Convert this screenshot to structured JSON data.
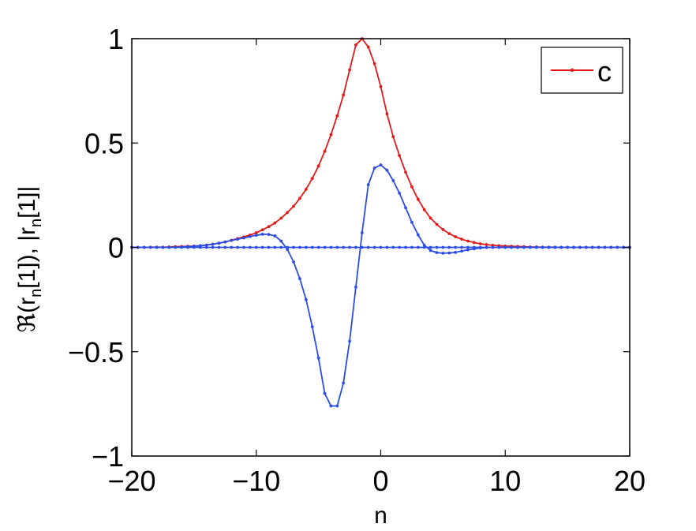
{
  "chart_data": {
    "type": "line",
    "title": "",
    "xlabel": "n",
    "ylabel": "ℜ(r_n[1]), |r_n[1]|",
    "ylabel_parts": {
      "prefix": "ℜ(r",
      "sub1": "n",
      "mid": "[1]), |r",
      "sub2": "n",
      "suffix": "[1]|"
    },
    "xlim": [
      -20,
      20
    ],
    "ylim": [
      -1,
      1
    ],
    "xticks": [
      -20,
      -10,
      0,
      10,
      20
    ],
    "xtick_labels": [
      "−20",
      "−10",
      "0",
      "10",
      "20"
    ],
    "yticks": [
      -1,
      -0.5,
      0,
      0.5,
      1
    ],
    "ytick_labels": [
      "−1",
      "−0.5",
      "0",
      "0.5",
      "1"
    ],
    "grid": false,
    "legend": {
      "position": "top-right",
      "entries": [
        {
          "label": "c",
          "color": "#e31a1a"
        }
      ]
    },
    "series": [
      {
        "name": "c",
        "color": "#e31a1a",
        "marker": "dot",
        "x": [
          -20,
          -19.5,
          -19,
          -18.5,
          -18,
          -17.5,
          -17,
          -16.5,
          -16,
          -15.5,
          -15,
          -14.5,
          -14,
          -13.5,
          -13,
          -12.5,
          -12,
          -11.5,
          -11,
          -10.5,
          -10,
          -9.5,
          -9,
          -8.5,
          -8,
          -7.5,
          -7,
          -6.5,
          -6,
          -5.5,
          -5,
          -4.5,
          -4,
          -3.5,
          -3,
          -2.5,
          -2,
          -1.5,
          -1,
          -0.5,
          0,
          0.5,
          1,
          1.5,
          2,
          2.5,
          3,
          3.5,
          4,
          4.5,
          5,
          5.5,
          6,
          6.5,
          7,
          7.5,
          8,
          8.5,
          9,
          9.5,
          10,
          10.5,
          11,
          11.5,
          12,
          12.5,
          13,
          13.5,
          14,
          14.5,
          15,
          15.5,
          16,
          16.5,
          17,
          17.5,
          18,
          18.5,
          19,
          19.5,
          20
        ],
        "y": [
          0,
          0,
          0,
          0.001,
          0.001,
          0.001,
          0.002,
          0.003,
          0.004,
          0.005,
          0.006,
          0.008,
          0.011,
          0.015,
          0.02,
          0.026,
          0.034,
          0.042,
          0.05,
          0.059,
          0.07,
          0.084,
          0.099,
          0.117,
          0.14,
          0.167,
          0.197,
          0.235,
          0.278,
          0.33,
          0.39,
          0.46,
          0.54,
          0.63,
          0.73,
          0.85,
          0.97,
          1.0,
          0.96,
          0.88,
          0.77,
          0.64,
          0.53,
          0.44,
          0.36,
          0.29,
          0.23,
          0.18,
          0.14,
          0.11,
          0.085,
          0.066,
          0.051,
          0.039,
          0.03,
          0.023,
          0.017,
          0.013,
          0.01,
          0.008,
          0.006,
          0.005,
          0.004,
          0.003,
          0.002,
          0.002,
          0.001,
          0.001,
          0.001,
          0,
          0,
          0,
          0,
          0,
          0,
          0,
          0,
          0,
          0,
          0,
          0
        ]
      },
      {
        "name": "",
        "color": "#2b4de6",
        "marker": "dot",
        "x": [
          -20,
          -19.5,
          -19,
          -18.5,
          -18,
          -17.5,
          -17,
          -16.5,
          -16,
          -15.5,
          -15,
          -14.5,
          -14,
          -13.5,
          -13,
          -12.5,
          -12,
          -11.5,
          -11,
          -10.5,
          -10,
          -9.5,
          -9,
          -8.5,
          -8,
          -7.5,
          -7,
          -6.5,
          -6,
          -5.5,
          -5,
          -4.5,
          -4,
          -3.5,
          -3,
          -2.5,
          -2,
          -1.5,
          -1,
          -0.5,
          0,
          0.5,
          1,
          1.5,
          2,
          2.5,
          3,
          3.5,
          4,
          4.5,
          5,
          5.5,
          6,
          6.5,
          7,
          7.5,
          8,
          8.5,
          9,
          9.5,
          10,
          10.5,
          11,
          11.5,
          12,
          12.5,
          13,
          13.5,
          14,
          14.5,
          15,
          15.5,
          16,
          16.5,
          17,
          17.5,
          18,
          18.5,
          19,
          19.5,
          20
        ],
        "y": [
          0,
          0,
          0,
          0,
          0,
          0,
          0,
          0,
          0.002,
          0.003,
          0.005,
          0.008,
          0.011,
          0.015,
          0.02,
          0.026,
          0.033,
          0.039,
          0.045,
          0.052,
          0.058,
          0.063,
          0.062,
          0.055,
          0.03,
          -0.01,
          -0.07,
          -0.15,
          -0.25,
          -0.38,
          -0.53,
          -0.7,
          -0.76,
          -0.76,
          -0.65,
          -0.45,
          -0.19,
          0.07,
          0.3,
          0.38,
          0.395,
          0.37,
          0.32,
          0.26,
          0.19,
          0.12,
          0.06,
          0.01,
          -0.015,
          -0.025,
          -0.028,
          -0.027,
          -0.024,
          -0.018,
          -0.012,
          -0.007,
          -0.003,
          -0.001,
          0,
          0,
          0,
          0,
          0,
          0,
          0,
          0,
          0,
          0,
          0,
          0,
          0,
          0,
          0,
          0,
          0,
          0,
          0,
          0,
          0,
          0,
          0
        ]
      },
      {
        "name": "",
        "color": "#2b4de6",
        "marker": "dot",
        "x": [
          -20,
          -19.5,
          -19,
          -18.5,
          -18,
          -17.5,
          -17,
          -16.5,
          -16,
          -15.5,
          -15,
          -14.5,
          -14,
          -13.5,
          -13,
          -12.5,
          -12,
          -11.5,
          -11,
          -10.5,
          -10,
          -9.5,
          -9,
          -8.5,
          -8,
          -7.5,
          -7,
          -6.5,
          -6,
          -5.5,
          -5,
          -4.5,
          -4,
          -3.5,
          -3,
          -2.5,
          -2,
          -1.5,
          -1,
          -0.5,
          0,
          0.5,
          1,
          1.5,
          2,
          2.5,
          3,
          3.5,
          4,
          4.5,
          5,
          5.5,
          6,
          6.5,
          7,
          7.5,
          8,
          8.5,
          9,
          9.5,
          10,
          10.5,
          11,
          11.5,
          12,
          12.5,
          13,
          13.5,
          14,
          14.5,
          15,
          15.5,
          16,
          16.5,
          17,
          17.5,
          18,
          18.5,
          19,
          19.5,
          20
        ],
        "y": [
          0,
          0,
          0,
          0,
          0,
          0,
          0,
          0,
          0,
          0,
          0,
          0,
          0,
          0,
          0,
          0,
          0,
          0,
          0,
          0,
          0,
          0,
          0,
          0,
          0,
          0,
          0,
          0,
          0,
          0,
          0,
          0,
          0,
          0,
          0,
          0,
          0,
          0,
          0,
          0,
          0,
          0,
          0,
          0,
          0,
          0,
          0,
          0,
          0,
          0,
          0,
          0,
          0,
          0,
          0,
          0,
          0,
          0,
          0,
          0,
          0,
          0,
          0,
          0,
          0,
          0,
          0,
          0,
          0,
          0,
          0,
          0,
          0,
          0,
          0,
          0,
          0,
          0,
          0,
          0,
          0
        ]
      }
    ]
  }
}
